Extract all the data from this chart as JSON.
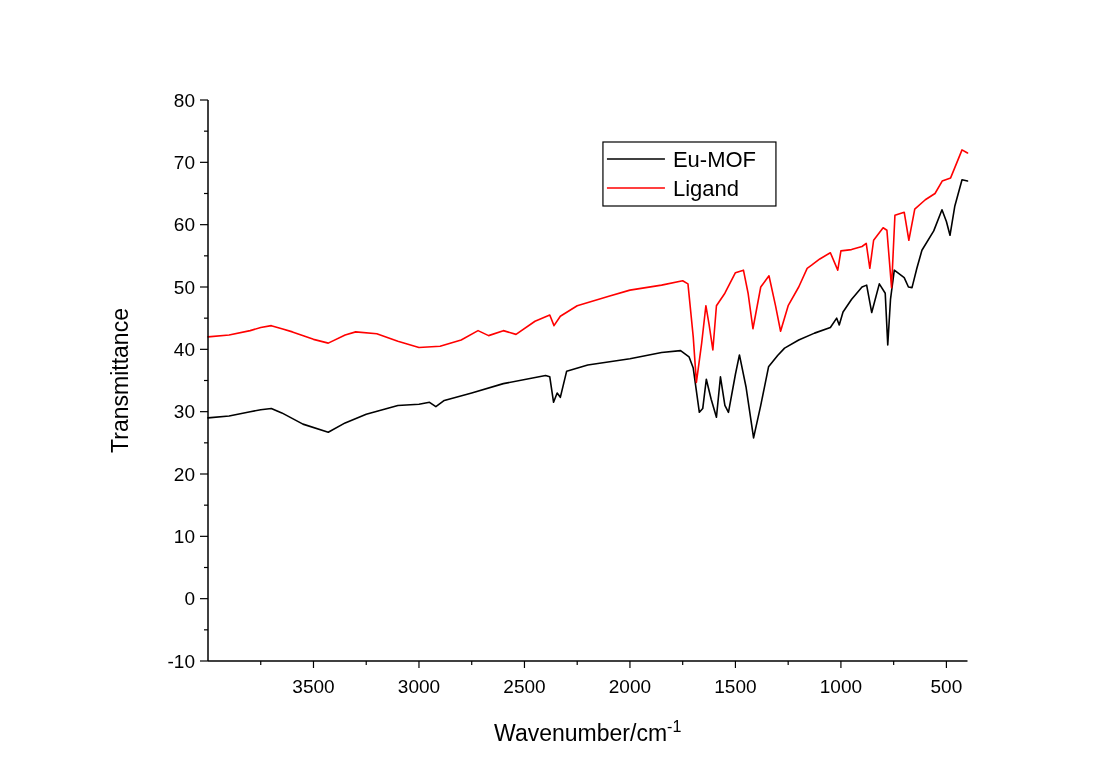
{
  "chart_data": {
    "type": "line",
    "xlabel": "Wavenumber/cm$^{-1}$",
    "ylabel": "Transmittance",
    "xlim": [
      4000,
      400
    ],
    "ylim": [
      -10,
      80
    ],
    "xticks": [
      {
        "value": 3750,
        "label": null
      },
      3500,
      {
        "value": 3250,
        "label": null
      },
      3000,
      {
        "value": 2750,
        "label": null
      },
      2500,
      {
        "value": 2250,
        "label": null
      },
      2000,
      {
        "value": 1750,
        "label": null
      },
      1500,
      {
        "value": 1250,
        "label": null
      },
      1000,
      {
        "value": 750,
        "label": null
      },
      500
    ],
    "yticks": [
      -10,
      {
        "value": -5,
        "label": null
      },
      0,
      {
        "value": 5,
        "label": null
      },
      10,
      {
        "value": 15,
        "label": null
      },
      20,
      {
        "value": 25,
        "label": null
      },
      30,
      {
        "value": 35,
        "label": null
      },
      40,
      {
        "value": 45,
        "label": null
      },
      50,
      {
        "value": 55,
        "label": null
      },
      60,
      {
        "value": 65,
        "label": null
      },
      70,
      {
        "value": 75,
        "label": null
      },
      80
    ],
    "grid": false,
    "legend": "top right",
    "marker": "none",
    "line_style": "solid",
    "series": [
      {
        "name": "Eu-MOF",
        "color": "#000000",
        "x": [
          4000,
          3900,
          3800,
          3750,
          3700,
          3650,
          3550,
          3430,
          3350,
          3250,
          3100,
          3000,
          2950,
          2920,
          2880,
          2750,
          2600,
          2400,
          2380,
          2362,
          2345,
          2330,
          2300,
          2200,
          2000,
          1850,
          1760,
          1720,
          1700,
          1671,
          1655,
          1638,
          1615,
          1590,
          1571,
          1550,
          1533,
          1500,
          1481,
          1450,
          1414,
          1380,
          1343,
          1300,
          1267,
          1200,
          1125,
          1050,
          1020,
          1008,
          990,
          950,
          900,
          878,
          854,
          818,
          790,
          778,
          765,
          747,
          700,
          680,
          663,
          640,
          616,
          560,
          521,
          500,
          483,
          460,
          426,
          400
        ],
        "values": [
          29,
          29.3,
          30,
          30.3,
          30.5,
          29.8,
          28,
          26.7,
          28.2,
          29.6,
          31,
          31.2,
          31.5,
          30.8,
          31.8,
          33,
          34.5,
          35.8,
          35.6,
          31.5,
          33,
          32.3,
          36.5,
          37.5,
          38.5,
          39.5,
          39.8,
          38.8,
          37,
          29.9,
          30.5,
          35.2,
          32,
          29.1,
          35.6,
          31,
          29.9,
          36,
          39.1,
          34,
          25.8,
          31,
          37.2,
          39,
          40.2,
          41.5,
          42.6,
          43.5,
          45,
          43.9,
          46,
          48,
          50,
          50.3,
          45.9,
          50.5,
          49,
          40.7,
          48,
          52.7,
          51.5,
          50,
          49.9,
          53,
          55.9,
          59,
          62.4,
          60.5,
          58.3,
          63,
          67.2,
          67
        ]
      },
      {
        "name": "Ligand",
        "color": "#ff0000",
        "x": [
          4000,
          3900,
          3800,
          3750,
          3700,
          3650,
          3600,
          3500,
          3430,
          3350,
          3300,
          3200,
          3100,
          3000,
          2900,
          2800,
          2720,
          2670,
          2600,
          2540,
          2450,
          2380,
          2360,
          2330,
          2250,
          2100,
          2000,
          1850,
          1750,
          1725,
          1700,
          1685,
          1660,
          1640,
          1625,
          1607,
          1590,
          1550,
          1500,
          1462,
          1440,
          1417,
          1380,
          1341,
          1310,
          1286,
          1250,
          1200,
          1160,
          1139,
          1100,
          1050,
          1015,
          1000,
          950,
          900,
          880,
          863,
          845,
          800,
          782,
          760,
          744,
          700,
          678,
          650,
          600,
          554,
          520,
          480,
          450,
          426,
          400
        ],
        "values": [
          42,
          42.3,
          43,
          43.5,
          43.8,
          43.3,
          42.8,
          41.6,
          41,
          42.3,
          42.8,
          42.5,
          41.3,
          40.3,
          40.5,
          41.5,
          43,
          42.2,
          43,
          42.4,
          44.5,
          45.5,
          43.8,
          45.3,
          47,
          48.5,
          49.5,
          50.3,
          51,
          50.5,
          42,
          34.7,
          41,
          47,
          44,
          39.9,
          47,
          49,
          52.3,
          52.7,
          49,
          43.3,
          50,
          51.8,
          47,
          42.9,
          47,
          50,
          53,
          53.5,
          54.5,
          55.5,
          52.7,
          55.8,
          56,
          56.5,
          57,
          53,
          57.5,
          59.5,
          59.1,
          49.9,
          61.5,
          62,
          57.5,
          62.5,
          64,
          65,
          67,
          67.5,
          70,
          72,
          71.5
        ]
      }
    ]
  }
}
